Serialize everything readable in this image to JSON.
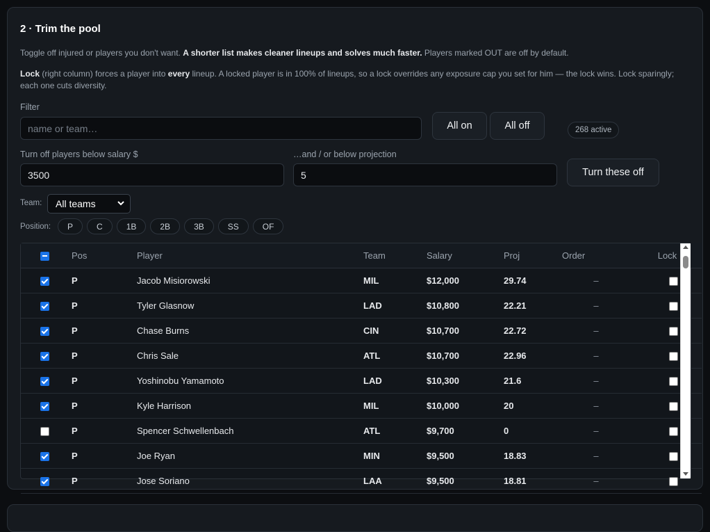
{
  "section": {
    "title": "2 · Trim the pool",
    "desc1_pre": "Toggle off injured or players you don't want. ",
    "desc1_bold": "A shorter list makes cleaner lineups and solves much faster.",
    "desc1_post": " Players marked OUT are off by default.",
    "desc2_bold1": "Lock",
    "desc2_a": " (right column) forces a player into ",
    "desc2_bold2": "every",
    "desc2_b": " lineup. A locked player is in 100% of lineups, so a lock overrides any exposure cap you set for him — the lock wins. Lock sparingly; each one cuts diversity."
  },
  "filter": {
    "label": "Filter",
    "placeholder": "name or team…",
    "all_on": "All on",
    "all_off": "All off",
    "active_count": "268 active"
  },
  "thresholds": {
    "salary_label": "Turn off players below salary $",
    "salary_value": "3500",
    "proj_label": "…and / or below projection",
    "proj_value": "5",
    "apply_label": "Turn these off"
  },
  "team_filter": {
    "label": "Team:",
    "selected": "All teams"
  },
  "position_filter": {
    "label": "Position:",
    "options": [
      "P",
      "C",
      "1B",
      "2B",
      "3B",
      "SS",
      "OF"
    ]
  },
  "table": {
    "columns": {
      "pos": "Pos",
      "player": "Player",
      "team": "Team",
      "salary": "Salary",
      "proj": "Proj",
      "order": "Order",
      "lock": "Lock"
    },
    "rows": [
      {
        "enabled": true,
        "pos": "P",
        "player": "Jacob Misiorowski",
        "team": "MIL",
        "salary": "$12,000",
        "proj": "29.74",
        "order": "–",
        "locked": false
      },
      {
        "enabled": true,
        "pos": "P",
        "player": "Tyler Glasnow",
        "team": "LAD",
        "salary": "$10,800",
        "proj": "22.21",
        "order": "–",
        "locked": false
      },
      {
        "enabled": true,
        "pos": "P",
        "player": "Chase Burns",
        "team": "CIN",
        "salary": "$10,700",
        "proj": "22.72",
        "order": "–",
        "locked": false
      },
      {
        "enabled": true,
        "pos": "P",
        "player": "Chris Sale",
        "team": "ATL",
        "salary": "$10,700",
        "proj": "22.96",
        "order": "–",
        "locked": false
      },
      {
        "enabled": true,
        "pos": "P",
        "player": "Yoshinobu Yamamoto",
        "team": "LAD",
        "salary": "$10,300",
        "proj": "21.6",
        "order": "–",
        "locked": false
      },
      {
        "enabled": true,
        "pos": "P",
        "player": "Kyle Harrison",
        "team": "MIL",
        "salary": "$10,000",
        "proj": "20",
        "order": "–",
        "locked": false
      },
      {
        "enabled": false,
        "pos": "P",
        "player": "Spencer Schwellenbach",
        "team": "ATL",
        "salary": "$9,700",
        "proj": "0",
        "order": "–",
        "locked": false
      },
      {
        "enabled": true,
        "pos": "P",
        "player": "Joe Ryan",
        "team": "MIN",
        "salary": "$9,500",
        "proj": "18.83",
        "order": "–",
        "locked": false
      },
      {
        "enabled": true,
        "pos": "P",
        "player": "Jose Soriano",
        "team": "LAA",
        "salary": "$9,500",
        "proj": "18.81",
        "order": "–",
        "locked": false
      }
    ]
  }
}
